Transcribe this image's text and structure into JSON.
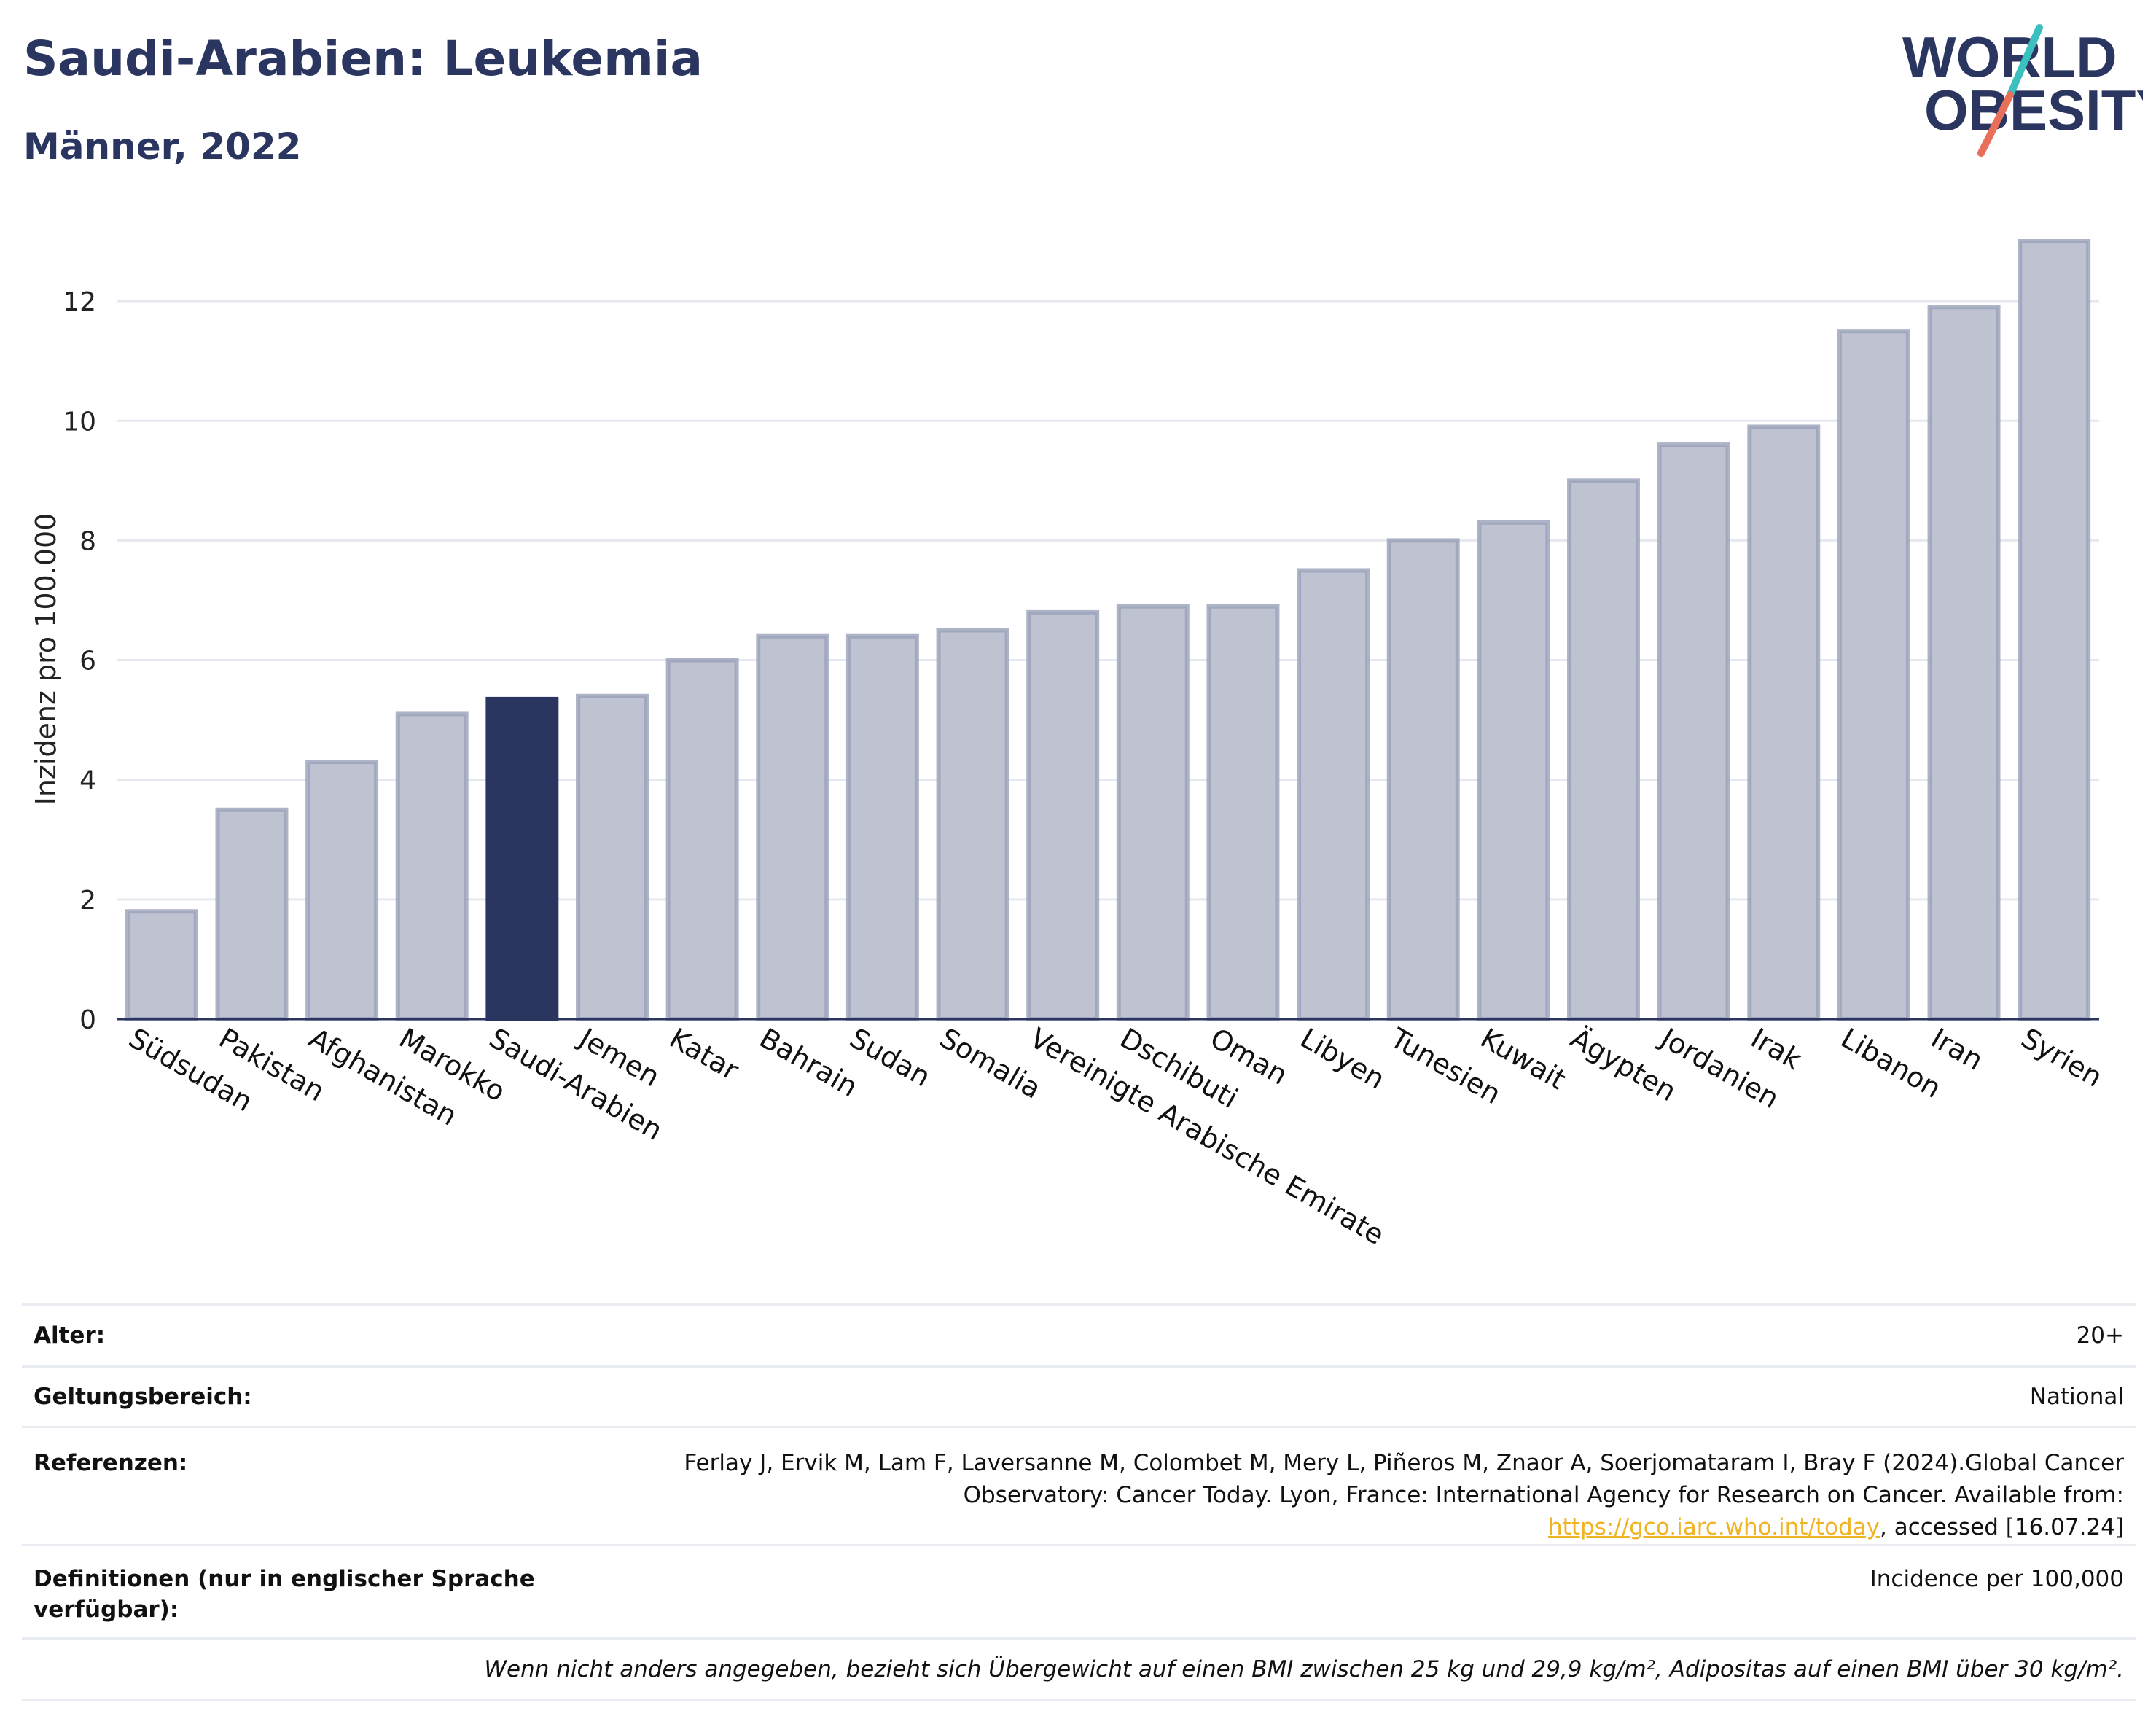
{
  "header": {
    "title": "Saudi-Arabien: Leukemia",
    "subtitle": "Männer, 2022"
  },
  "logo": {
    "line1": "WORLD",
    "line2": "OBESITY"
  },
  "colors": {
    "bar": "#bfc3d1",
    "bar_stroke": "#9aa1b9",
    "highlight": "#2a3560",
    "text": "#2a3560",
    "grid": "#e6e8ef",
    "accent_teal": "#3bbfbf",
    "accent_coral": "#e8705a",
    "link": "#f0b323"
  },
  "chart_data": {
    "type": "bar",
    "ylabel": "Inzidenz pro 100.000",
    "ylim": [
      0,
      13.5
    ],
    "yticks": [
      0,
      2,
      4,
      6,
      8,
      10,
      12
    ],
    "grid": true,
    "highlight": "Saudi-Arabien",
    "categories": [
      "Südsudan",
      "Pakistan",
      "Afghanistan",
      "Marokko",
      "Saudi-Arabien",
      "Jemen",
      "Katar",
      "Bahrain",
      "Sudan",
      "Somalia",
      "Vereinigte Arabische Emirate",
      "Dschibuti",
      "Oman",
      "Libyen",
      "Tunesien",
      "Kuwait",
      "Ägypten",
      "Jordanien",
      "Irak",
      "Libanon",
      "Iran",
      "Syrien"
    ],
    "values": [
      1.8,
      3.5,
      4.3,
      5.1,
      5.35,
      5.4,
      6.0,
      6.4,
      6.4,
      6.5,
      6.8,
      6.9,
      6.9,
      7.5,
      8.0,
      8.3,
      9.0,
      9.6,
      9.9,
      11.5,
      11.9,
      13.0
    ]
  },
  "meta": {
    "age_label": "Alter:",
    "age_value": "20+",
    "scope_label": "Geltungsbereich:",
    "scope_value": "National",
    "ref_label": "Referenzen:",
    "ref_text_1": "Ferlay J, Ervik M, Lam F, Laversanne M, Colombet M, Mery L, Piñeros M, Znaor A, Soerjomataram I, Bray F (2024).Global Cancer Observatory: Cancer Today. Lyon, France: International Agency for Research on Cancer. Available from: ",
    "ref_link": "https://gco.iarc.who.int/today",
    "ref_text_2": ", accessed [16.07.24]",
    "def_label": "Definitionen (nur in englischer Sprache verfügbar):",
    "def_value": "Incidence per 100,000",
    "note": "Wenn nicht anders angegeben, bezieht sich Übergewicht auf einen BMI zwischen 25 kg und 29,9 kg/m², Adipositas auf einen BMI über 30 kg/m²."
  }
}
